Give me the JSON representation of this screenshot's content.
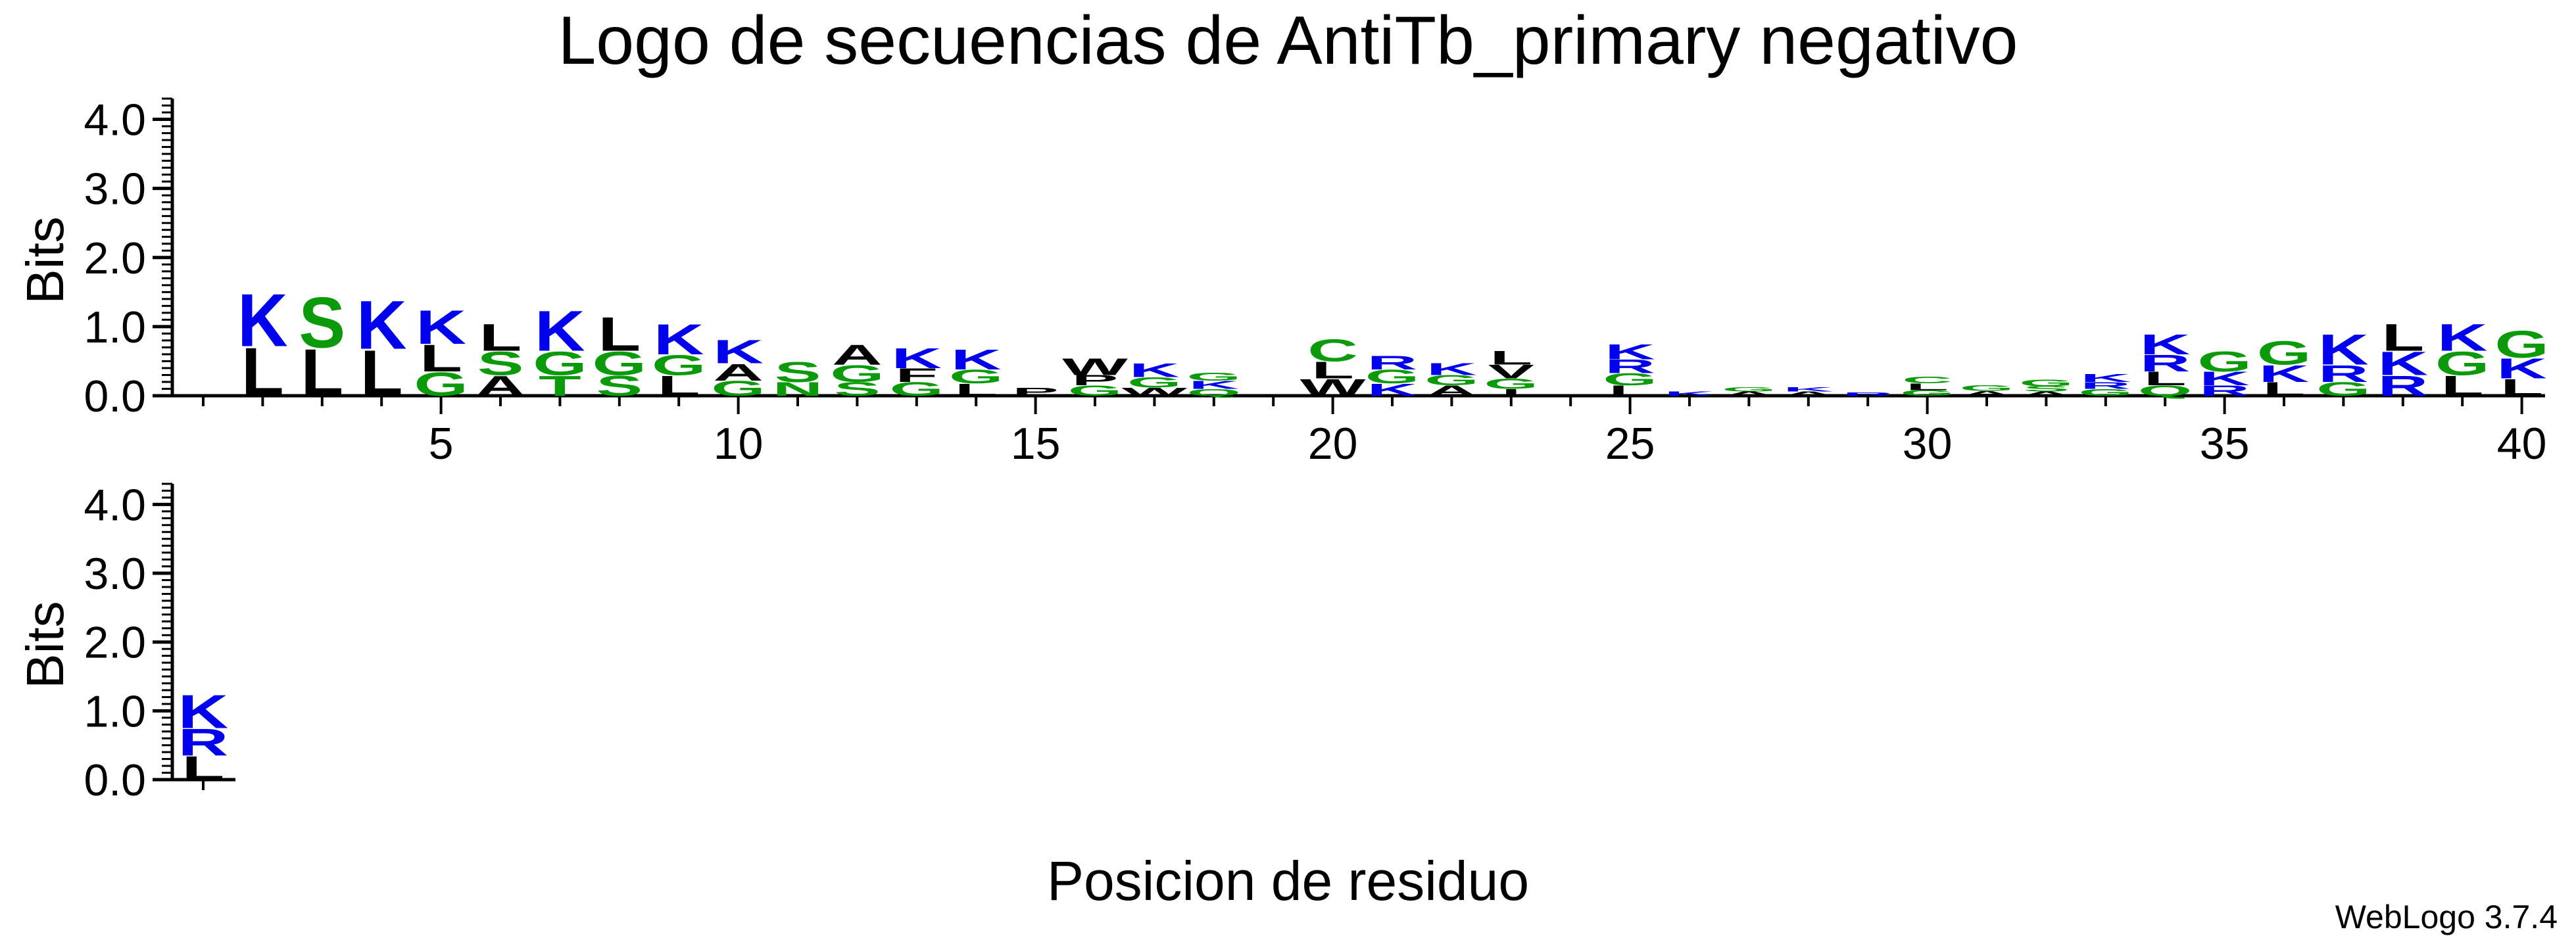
{
  "chart_data": {
    "type": "sequence-logo",
    "title": "Logo de secuencias de AntiTb_primary negativo",
    "xlabel": "Posicion de residuo",
    "ylabel": "Bits",
    "credit": "WebLogo 3.7.4",
    "ylim": [
      0,
      4.3
    ],
    "y_ticks": [
      "0.0",
      "1.0",
      "2.0",
      "3.0",
      "4.0"
    ],
    "x_tick_labels": [
      "5",
      "10",
      "15",
      "20",
      "25",
      "30",
      "35",
      "40"
    ],
    "colors": {
      "hydrophobic": "#000000",
      "polar": "#0a9a0a",
      "basic": "#0000ee"
    },
    "rows": [
      {
        "first_position": 1,
        "last_position": 40,
        "columns": [
          {
            "position": 1,
            "stack": []
          },
          {
            "position": 2,
            "stack": [
              {
                "letter": "K",
                "bits": 0.78
              },
              {
                "letter": "L",
                "bits": 0.72
              }
            ]
          },
          {
            "position": 3,
            "stack": [
              {
                "letter": "L",
                "bits": 0.7
              },
              {
                "letter": "S",
                "bits": 0.75
              }
            ]
          },
          {
            "position": 4,
            "stack": [
              {
                "letter": "K",
                "bits": 0.72
              },
              {
                "letter": "L",
                "bits": 0.68
              }
            ]
          },
          {
            "position": 5,
            "stack": [
              {
                "letter": "K",
                "bits": 0.5
              },
              {
                "letter": "L",
                "bits": 0.4
              },
              {
                "letter": "G",
                "bits": 0.35
              }
            ]
          },
          {
            "position": 6,
            "stack": [
              {
                "letter": "L",
                "bits": 0.4
              },
              {
                "letter": "S",
                "bits": 0.35
              },
              {
                "letter": "A",
                "bits": 0.3
              }
            ]
          },
          {
            "position": 7,
            "stack": [
              {
                "letter": "K",
                "bits": 0.6
              },
              {
                "letter": "G",
                "bits": 0.35
              },
              {
                "letter": "T",
                "bits": 0.3
              }
            ]
          },
          {
            "position": 8,
            "stack": [
              {
                "letter": "L",
                "bits": 0.5
              },
              {
                "letter": "G",
                "bits": 0.35
              },
              {
                "letter": "S",
                "bits": 0.3
              }
            ]
          },
          {
            "position": 9,
            "stack": [
              {
                "letter": "K",
                "bits": 0.45
              },
              {
                "letter": "L",
                "bits": 0.3
              },
              {
                "letter": "G",
                "bits": 0.3
              }
            ]
          },
          {
            "position": 10,
            "stack": [
              {
                "letter": "K",
                "bits": 0.35
              },
              {
                "letter": "A",
                "bits": 0.25
              },
              {
                "letter": "G",
                "bits": 0.22
              }
            ]
          },
          {
            "position": 11,
            "stack": [
              {
                "letter": "S",
                "bits": 0.3
              },
              {
                "letter": "N",
                "bits": 0.2
              }
            ]
          },
          {
            "position": 12,
            "stack": [
              {
                "letter": "A",
                "bits": 0.3
              },
              {
                "letter": "G",
                "bits": 0.25
              },
              {
                "letter": "S",
                "bits": 0.2
              }
            ]
          },
          {
            "position": 13,
            "stack": [
              {
                "letter": "K",
                "bits": 0.3
              },
              {
                "letter": "G",
                "bits": 0.2
              },
              {
                "letter": "F",
                "bits": 0.2
              }
            ]
          },
          {
            "position": 14,
            "stack": [
              {
                "letter": "K",
                "bits": 0.3
              },
              {
                "letter": "L",
                "bits": 0.18
              },
              {
                "letter": "G",
                "bits": 0.2
              }
            ]
          },
          {
            "position": 15,
            "stack": [
              {
                "letter": "P",
                "bits": 0.12
              }
            ]
          },
          {
            "position": 16,
            "stack": [
              {
                "letter": "W",
                "bits": 0.25
              },
              {
                "letter": "G",
                "bits": 0.15
              },
              {
                "letter": "P",
                "bits": 0.15
              }
            ]
          },
          {
            "position": 17,
            "stack": [
              {
                "letter": "K",
                "bits": 0.2
              },
              {
                "letter": "G",
                "bits": 0.15
              },
              {
                "letter": "W",
                "bits": 0.12
              }
            ]
          },
          {
            "position": 18,
            "stack": [
              {
                "letter": "K",
                "bits": 0.12
              },
              {
                "letter": "Q",
                "bits": 0.1
              },
              {
                "letter": "G",
                "bits": 0.12
              }
            ]
          },
          {
            "position": 19,
            "stack": []
          },
          {
            "position": 20,
            "stack": [
              {
                "letter": "W",
                "bits": 0.25
              },
              {
                "letter": "L",
                "bits": 0.25
              },
              {
                "letter": "C",
                "bits": 0.33
              }
            ]
          },
          {
            "position": 21,
            "stack": [
              {
                "letter": "G",
                "bits": 0.2
              },
              {
                "letter": "K",
                "bits": 0.18
              },
              {
                "letter": "R",
                "bits": 0.2
              }
            ]
          },
          {
            "position": 22,
            "stack": [
              {
                "letter": "A",
                "bits": 0.15
              },
              {
                "letter": "G",
                "bits": 0.15
              },
              {
                "letter": "K",
                "bits": 0.18
              }
            ]
          },
          {
            "position": 23,
            "stack": [
              {
                "letter": "G",
                "bits": 0.15
              },
              {
                "letter": "V",
                "bits": 0.2
              },
              {
                "letter": "I",
                "bits": 0.1
              },
              {
                "letter": "L",
                "bits": 0.2
              }
            ]
          },
          {
            "position": 24,
            "stack": []
          },
          {
            "position": 25,
            "stack": [
              {
                "letter": "R",
                "bits": 0.2
              },
              {
                "letter": "L",
                "bits": 0.15
              },
              {
                "letter": "G",
                "bits": 0.18
              },
              {
                "letter": "K",
                "bits": 0.22
              }
            ]
          },
          {
            "position": 26,
            "stack": [
              {
                "letter": "K",
                "bits": 0.06
              }
            ]
          },
          {
            "position": 27,
            "stack": [
              {
                "letter": "A",
                "bits": 0.06
              },
              {
                "letter": "G",
                "bits": 0.06
              }
            ]
          },
          {
            "position": 28,
            "stack": [
              {
                "letter": "A",
                "bits": 0.06
              },
              {
                "letter": "K",
                "bits": 0.06
              }
            ]
          },
          {
            "position": 29,
            "stack": [
              {
                "letter": "R",
                "bits": 0.05
              }
            ]
          },
          {
            "position": 30,
            "stack": [
              {
                "letter": "L",
                "bits": 0.1
              },
              {
                "letter": "G",
                "bits": 0.08
              },
              {
                "letter": "C",
                "bits": 0.1
              }
            ]
          },
          {
            "position": 31,
            "stack": [
              {
                "letter": "G",
                "bits": 0.08
              },
              {
                "letter": "A",
                "bits": 0.07
              }
            ]
          },
          {
            "position": 32,
            "stack": [
              {
                "letter": "G",
                "bits": 0.1
              },
              {
                "letter": "S",
                "bits": 0.08
              },
              {
                "letter": "A",
                "bits": 0.06
              }
            ]
          },
          {
            "position": 33,
            "stack": [
              {
                "letter": "K",
                "bits": 0.12
              },
              {
                "letter": "G",
                "bits": 0.1
              },
              {
                "letter": "R",
                "bits": 0.1
              }
            ]
          },
          {
            "position": 34,
            "stack": [
              {
                "letter": "K",
                "bits": 0.3
              },
              {
                "letter": "R",
                "bits": 0.25
              },
              {
                "letter": "L",
                "bits": 0.2
              },
              {
                "letter": "Q",
                "bits": 0.15
              }
            ]
          },
          {
            "position": 35,
            "stack": [
              {
                "letter": "G",
                "bits": 0.3
              },
              {
                "letter": "K",
                "bits": 0.2
              },
              {
                "letter": "R",
                "bits": 0.15
              }
            ]
          },
          {
            "position": 36,
            "stack": [
              {
                "letter": "G",
                "bits": 0.35
              },
              {
                "letter": "K",
                "bits": 0.25
              },
              {
                "letter": "L",
                "bits": 0.2
              }
            ]
          },
          {
            "position": 37,
            "stack": [
              {
                "letter": "K",
                "bits": 0.45
              },
              {
                "letter": "R",
                "bits": 0.25
              },
              {
                "letter": "G",
                "bits": 0.2
              }
            ]
          },
          {
            "position": 38,
            "stack": [
              {
                "letter": "K",
                "bits": 0.35
              },
              {
                "letter": "R",
                "bits": 0.3
              },
              {
                "letter": "L",
                "bits": 0.4
              }
            ]
          },
          {
            "position": 39,
            "stack": [
              {
                "letter": "K",
                "bits": 0.4
              },
              {
                "letter": "G",
                "bits": 0.35
              },
              {
                "letter": "L",
                "bits": 0.3
              }
            ]
          },
          {
            "position": 40,
            "stack": [
              {
                "letter": "G",
                "bits": 0.4
              },
              {
                "letter": "K",
                "bits": 0.3
              },
              {
                "letter": "L",
                "bits": 0.25
              }
            ]
          }
        ]
      },
      {
        "first_position": 41,
        "last_position": 41,
        "columns": [
          {
            "position": 41,
            "stack": [
              {
                "letter": "K",
                "bits": 0.5
              },
              {
                "letter": "L",
                "bits": 0.35
              },
              {
                "letter": "R",
                "bits": 0.4
              }
            ]
          }
        ]
      }
    ]
  }
}
